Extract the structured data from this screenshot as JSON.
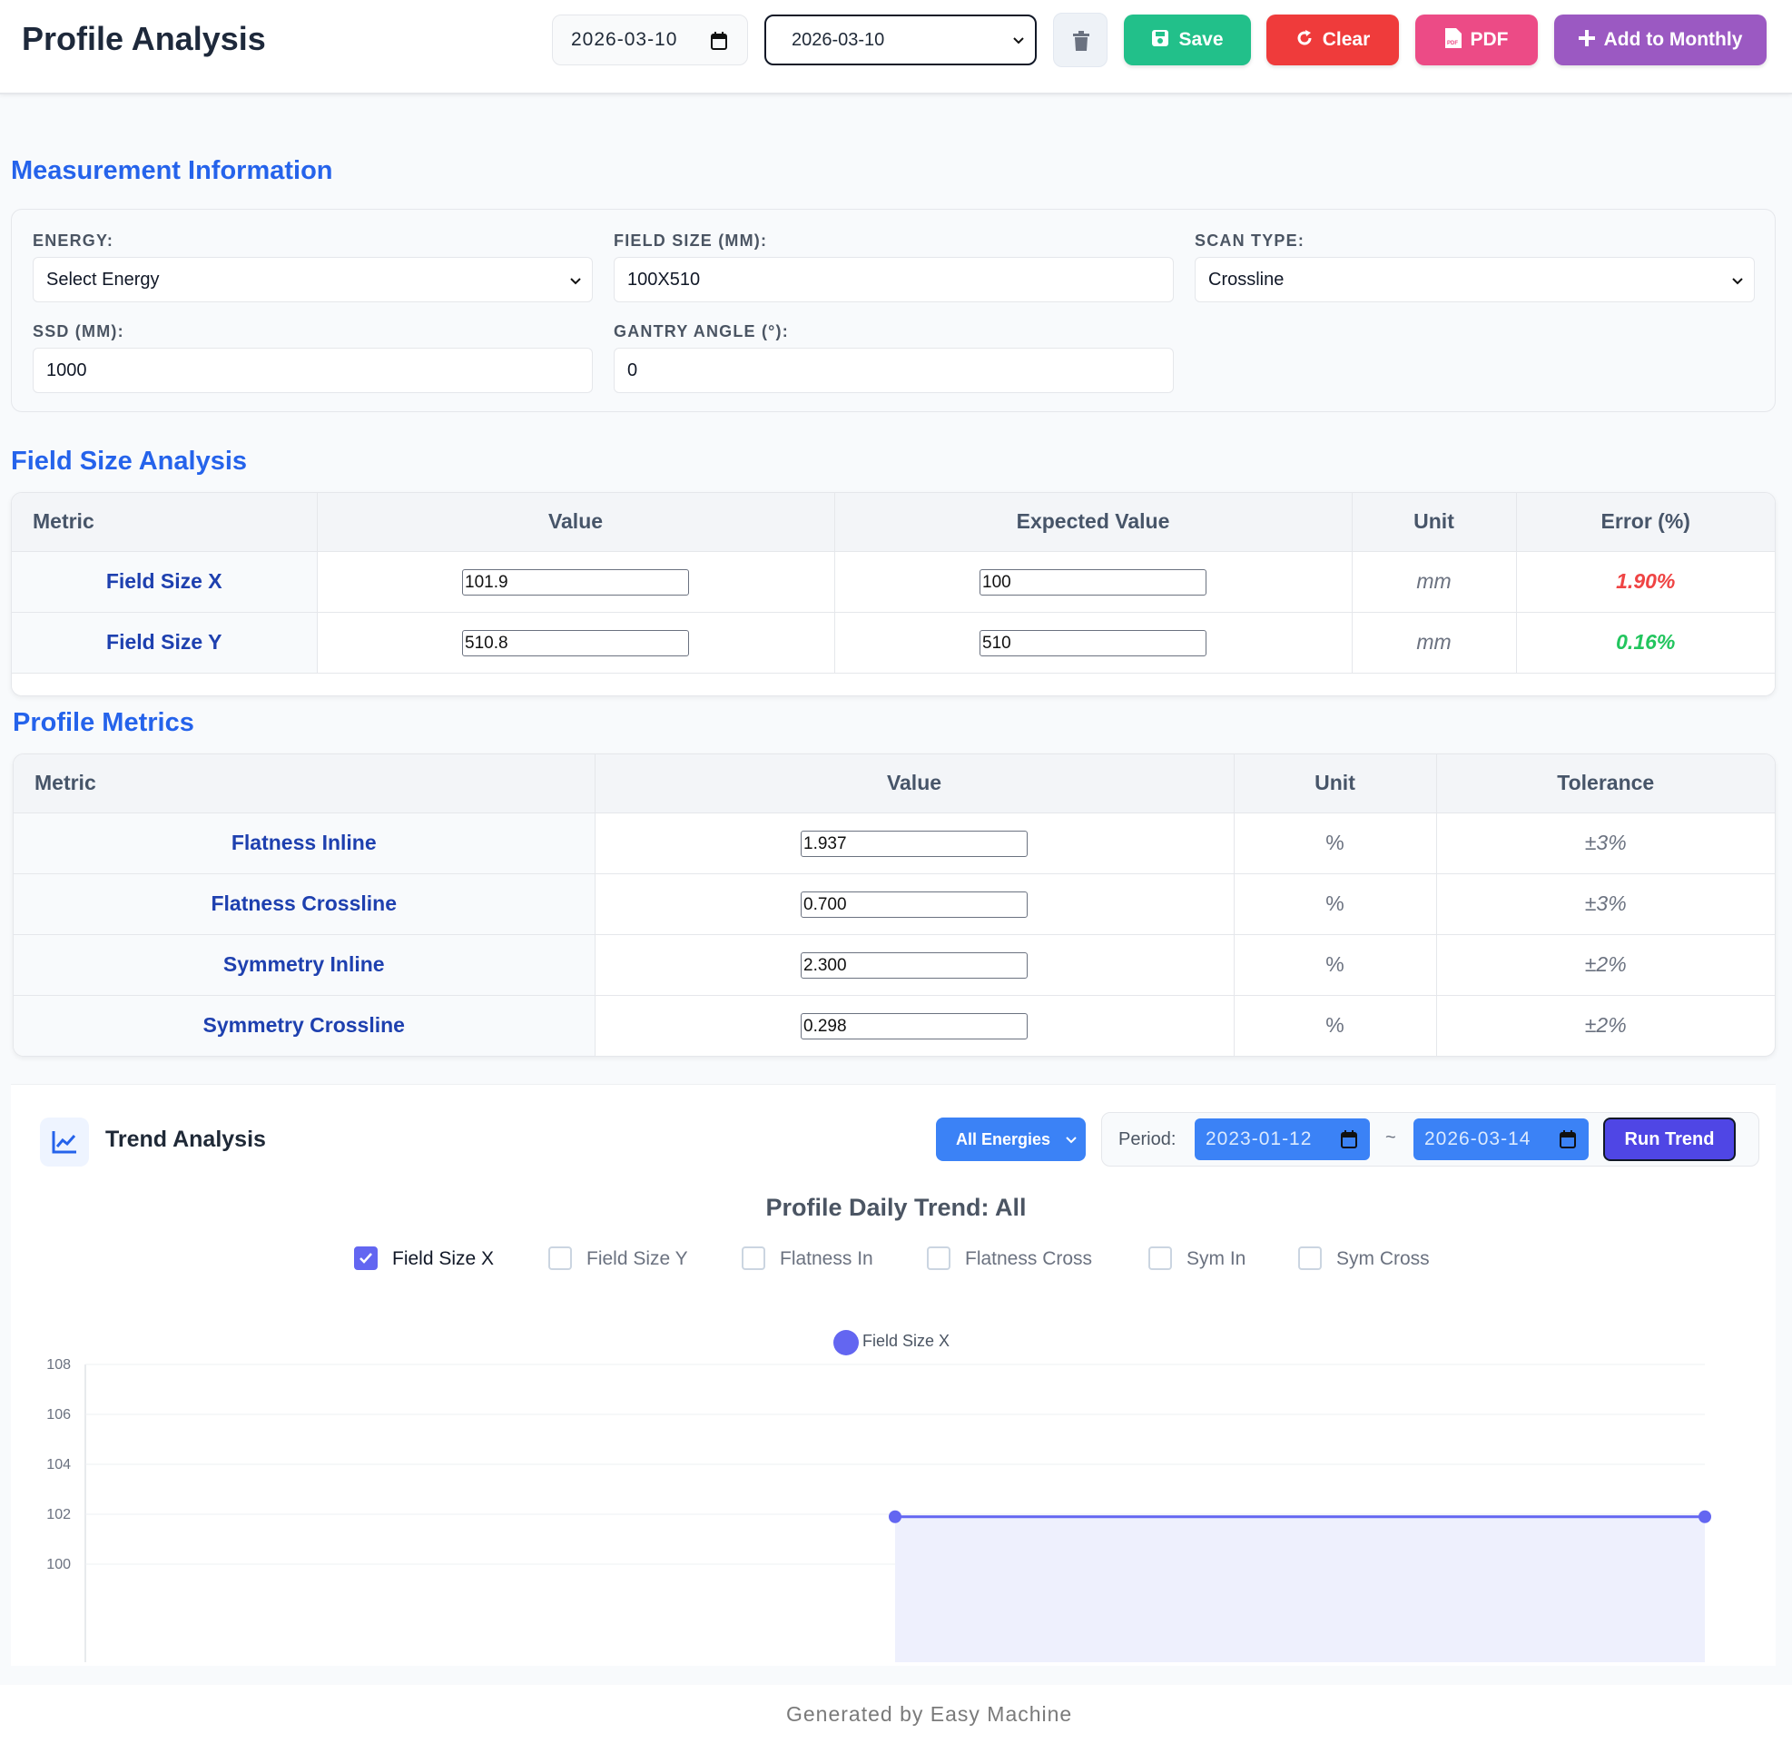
{
  "header": {
    "title": "Profile Analysis",
    "date_input": "2026-03-10",
    "date_select": "2026-03-10",
    "buttons": {
      "save": "Save",
      "clear": "Clear",
      "pdf": "PDF",
      "add_monthly": "Add to Monthly"
    }
  },
  "measurement": {
    "section_title": "Measurement Information",
    "energy": {
      "label": "ENERGY:",
      "value": "Select Energy"
    },
    "field_size": {
      "label": "FIELD SIZE (MM):",
      "value": "100X510"
    },
    "scan_type": {
      "label": "SCAN TYPE:",
      "value": "Crossline"
    },
    "ssd": {
      "label": "SSD (MM):",
      "value": "1000"
    },
    "gantry": {
      "label": "GANTRY ANGLE (°):",
      "value": "0"
    }
  },
  "field_size_analysis": {
    "section_title": "Field Size Analysis",
    "headers": [
      "Metric",
      "Value",
      "Expected Value",
      "Unit",
      "Error (%)"
    ],
    "rows": [
      {
        "metric": "Field Size X",
        "value": "101.9",
        "expected": "100",
        "unit": "mm",
        "error": "1.90%",
        "status": "fail"
      },
      {
        "metric": "Field Size Y",
        "value": "510.8",
        "expected": "510",
        "unit": "mm",
        "error": "0.16%",
        "status": "pass"
      }
    ]
  },
  "profile_metrics": {
    "section_title": "Profile Metrics",
    "headers": [
      "Metric",
      "Value",
      "Unit",
      "Tolerance"
    ],
    "rows": [
      {
        "metric": "Flatness Inline",
        "value": "1.937",
        "unit": "%",
        "tolerance": "±3%"
      },
      {
        "metric": "Flatness Crossline",
        "value": "0.700",
        "unit": "%",
        "tolerance": "±3%"
      },
      {
        "metric": "Symmetry Inline",
        "value": "2.300",
        "unit": "%",
        "tolerance": "±2%"
      },
      {
        "metric": "Symmetry Crossline",
        "value": "0.298",
        "unit": "%",
        "tolerance": "±2%"
      }
    ]
  },
  "trend": {
    "title": "Trend Analysis",
    "energy_filter": "All Energies",
    "period_label": "Period:",
    "period_start": "2023-01-12",
    "period_sep": "~",
    "period_end": "2026-03-14",
    "run_label": "Run Trend",
    "chart_title": "Profile Daily Trend: All",
    "toggles": [
      {
        "label": "Field Size X",
        "checked": true
      },
      {
        "label": "Field Size Y",
        "checked": false
      },
      {
        "label": "Flatness In",
        "checked": false
      },
      {
        "label": "Flatness Cross",
        "checked": false
      },
      {
        "label": "Sym In",
        "checked": false
      },
      {
        "label": "Sym Cross",
        "checked": false
      }
    ]
  },
  "chart_data": {
    "type": "area",
    "title": "Profile Daily Trend: All",
    "series": [
      {
        "name": "Field Size X",
        "color": "#6366f1",
        "values": [
          null,
          101.9,
          101.9
        ]
      }
    ],
    "y_ticks": [
      100,
      102,
      104,
      106,
      108
    ],
    "ylim": [
      100,
      108
    ],
    "grid": true,
    "legend_position": "top-center"
  },
  "footer": {
    "text": "Generated by Easy Machine"
  },
  "colors": {
    "accent": "#2563eb",
    "save": "#22c08a",
    "clear": "#ef3b3b",
    "pdf": "#ec4b86",
    "monthly": "#9b59c2",
    "run": "#4f46e5",
    "error_fail": "#ef4444",
    "error_pass": "#22c55e"
  }
}
